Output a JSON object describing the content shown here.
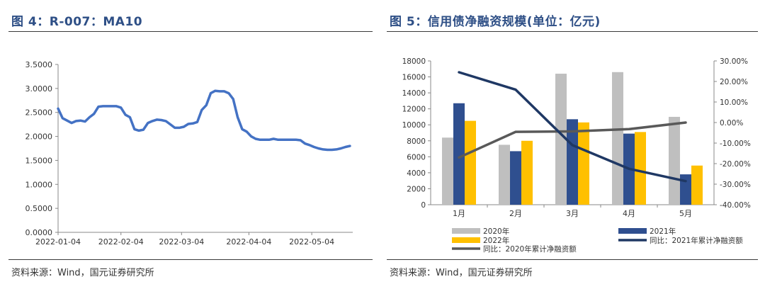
{
  "left": {
    "title": "图 4：R-007：MA10",
    "source": "资料来源：Wind，国元证券研究所"
  },
  "right": {
    "title": "图 5：信用债净融资规模(单位：亿元)",
    "source": "资料来源：Wind，国元证券研究所"
  },
  "colors": {
    "title": "#2e4f86",
    "line_ma10": "#4472c4",
    "bar_2020": "#bfbfbf",
    "bar_2021": "#2f4f8f",
    "bar_2022": "#ffc000",
    "line_2021_cum": "#1f3864",
    "line_yoy_2020": "#595959"
  },
  "chart_data": [
    {
      "type": "line",
      "title": "R-007：MA10",
      "xlabel": "",
      "ylabel": "",
      "ylim": [
        0,
        3.5
      ],
      "yticks": [
        "0.0000",
        "0.5000",
        "1.0000",
        "1.5000",
        "2.0000",
        "2.5000",
        "3.0000",
        "3.5000"
      ],
      "xtick_labels": [
        "2022-01-04",
        "2022-02-04",
        "2022-03-04",
        "2022-04-04",
        "2022-05-04"
      ],
      "x_range": [
        0,
        130
      ],
      "xtick_positions": [
        0,
        28,
        55,
        85,
        113
      ],
      "series": [
        {
          "name": "R-007:MA10",
          "x": [
            0,
            2,
            4,
            6,
            8,
            10,
            12,
            14,
            16,
            18,
            20,
            22,
            24,
            26,
            28,
            30,
            32,
            34,
            36,
            38,
            40,
            42,
            44,
            46,
            48,
            50,
            52,
            54,
            56,
            58,
            60,
            62,
            64,
            66,
            68,
            70,
            72,
            74,
            76,
            78,
            80,
            82,
            84,
            86,
            88,
            90,
            92,
            94,
            96,
            98,
            100,
            102,
            104,
            106,
            108,
            110,
            112,
            114,
            116,
            118,
            120,
            122,
            124,
            126,
            128,
            130
          ],
          "values": [
            2.58,
            2.38,
            2.33,
            2.28,
            2.32,
            2.33,
            2.31,
            2.4,
            2.47,
            2.62,
            2.63,
            2.63,
            2.63,
            2.63,
            2.6,
            2.45,
            2.4,
            2.15,
            2.12,
            2.14,
            2.28,
            2.32,
            2.35,
            2.34,
            2.32,
            2.25,
            2.18,
            2.18,
            2.2,
            2.26,
            2.27,
            2.3,
            2.55,
            2.65,
            2.9,
            2.95,
            2.94,
            2.94,
            2.9,
            2.78,
            2.4,
            2.15,
            2.1,
            2.0,
            1.95,
            1.93,
            1.93,
            1.93,
            1.95,
            1.93,
            1.93,
            1.93,
            1.93,
            1.93,
            1.92,
            1.85,
            1.82,
            1.78,
            1.75,
            1.73,
            1.72,
            1.72,
            1.73,
            1.75,
            1.78,
            1.8
          ]
        }
      ]
    },
    {
      "type": "bar",
      "title": "信用债净融资规模(单位：亿元)",
      "categories": [
        "1月",
        "2月",
        "3月",
        "4月",
        "5月"
      ],
      "ylim": [
        0,
        18000
      ],
      "yticks": [
        "0",
        "2000",
        "4000",
        "6000",
        "8000",
        "10000",
        "12000",
        "14000",
        "16000",
        "18000"
      ],
      "y2lim": [
        -40,
        30
      ],
      "y2ticks": [
        "-40.00%",
        "-30.00%",
        "-20.00%",
        "-10.00%",
        "0.00%",
        "10.00%",
        "20.00%",
        "30.00%"
      ],
      "series": [
        {
          "name": "2020年",
          "kind": "bar",
          "values": [
            8400,
            7500,
            16400,
            16600,
            11000
          ]
        },
        {
          "name": "2021年",
          "kind": "bar",
          "values": [
            12700,
            6700,
            10700,
            8900,
            3800
          ]
        },
        {
          "name": "2022年",
          "kind": "bar",
          "values": [
            10500,
            8000,
            10300,
            9100,
            4900
          ]
        },
        {
          "name": "同比：2020年累计净融资额",
          "kind": "line",
          "axis": "right",
          "values": [
            -17,
            -4.5,
            -4.3,
            -3.2,
            0
          ]
        },
        {
          "name": "同比：2021年累计净融资额",
          "kind": "line",
          "axis": "right",
          "values": [
            24.5,
            16,
            -11,
            -22.5,
            -28.5
          ]
        }
      ],
      "legend_labels": [
        "2020年",
        "2021年",
        "2022年",
        "同比：2021年累计净融资额",
        "同比：2020年累计净融资额"
      ]
    }
  ]
}
